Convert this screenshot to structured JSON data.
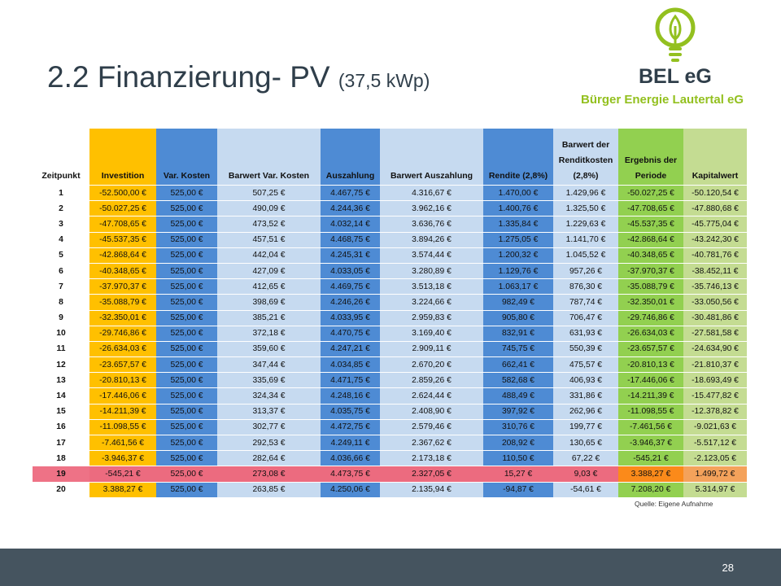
{
  "title": "2.2 Finanzierung- PV",
  "subtitle": "(37,5 kWp)",
  "logo": {
    "name": "BEL eG",
    "tagline": "Bürger Energie Lautertal eG",
    "icon": "lightbulb-icon",
    "color": "#93c01f"
  },
  "colors": {
    "investition": "#ffc000",
    "blue": "#4e8bd4",
    "light_blue": "#c6daf0",
    "ergebnis": "#92d050",
    "kapitalwert": "#c4dc92",
    "highlight_row": "#ec6b7f",
    "footer": "#45545f"
  },
  "table": {
    "headers": [
      "Zeitpunkt",
      "Investition",
      "Var. Kosten",
      "Barwert Var. Kosten",
      "Auszahlung",
      "Barwert Auszahlung",
      "Rendite (2,8%)",
      "Barwert der Renditkosten (2,8%)",
      "Ergebnis der Periode",
      "Kapitalwert"
    ],
    "highlight_row": "19",
    "rows": [
      [
        "1",
        "-52.500,00 €",
        "525,00 €",
        "507,25 €",
        "4.467,75 €",
        "4.316,67 €",
        "1.470,00 €",
        "1.429,96 €",
        "-50.027,25 €",
        "-50.120,54 €"
      ],
      [
        "2",
        "-50.027,25 €",
        "525,00 €",
        "490,09 €",
        "4.244,36 €",
        "3.962,16 €",
        "1.400,76 €",
        "1.325,50 €",
        "-47.708,65 €",
        "-47.880,68 €"
      ],
      [
        "3",
        "-47.708,65 €",
        "525,00 €",
        "473,52 €",
        "4.032,14 €",
        "3.636,76 €",
        "1.335,84 €",
        "1.229,63 €",
        "-45.537,35 €",
        "-45.775,04 €"
      ],
      [
        "4",
        "-45.537,35 €",
        "525,00 €",
        "457,51 €",
        "4.468,75 €",
        "3.894,26 €",
        "1.275,05 €",
        "1.141,70 €",
        "-42.868,64 €",
        "-43.242,30 €"
      ],
      [
        "5",
        "-42.868,64 €",
        "525,00 €",
        "442,04 €",
        "4.245,31 €",
        "3.574,44 €",
        "1.200,32 €",
        "1.045,52 €",
        "-40.348,65 €",
        "-40.781,76 €"
      ],
      [
        "6",
        "-40.348,65 €",
        "525,00 €",
        "427,09 €",
        "4.033,05 €",
        "3.280,89 €",
        "1.129,76 €",
        "957,26 €",
        "-37.970,37 €",
        "-38.452,11 €"
      ],
      [
        "7",
        "-37.970,37 €",
        "525,00 €",
        "412,65 €",
        "4.469,75 €",
        "3.513,18 €",
        "1.063,17 €",
        "876,30 €",
        "-35.088,79 €",
        "-35.746,13 €"
      ],
      [
        "8",
        "-35.088,79 €",
        "525,00 €",
        "398,69 €",
        "4.246,26 €",
        "3.224,66 €",
        "982,49 €",
        "787,74 €",
        "-32.350,01 €",
        "-33.050,56 €"
      ],
      [
        "9",
        "-32.350,01 €",
        "525,00 €",
        "385,21 €",
        "4.033,95 €",
        "2.959,83 €",
        "905,80 €",
        "706,47 €",
        "-29.746,86 €",
        "-30.481,86 €"
      ],
      [
        "10",
        "-29.746,86 €",
        "525,00 €",
        "372,18 €",
        "4.470,75 €",
        "3.169,40 €",
        "832,91 €",
        "631,93 €",
        "-26.634,03 €",
        "-27.581,58 €"
      ],
      [
        "11",
        "-26.634,03 €",
        "525,00 €",
        "359,60 €",
        "4.247,21 €",
        "2.909,11 €",
        "745,75 €",
        "550,39 €",
        "-23.657,57 €",
        "-24.634,90 €"
      ],
      [
        "12",
        "-23.657,57 €",
        "525,00 €",
        "347,44 €",
        "4.034,85 €",
        "2.670,20 €",
        "662,41 €",
        "475,57 €",
        "-20.810,13 €",
        "-21.810,37 €"
      ],
      [
        "13",
        "-20.810,13 €",
        "525,00 €",
        "335,69 €",
        "4.471,75 €",
        "2.859,26 €",
        "582,68 €",
        "406,93 €",
        "-17.446,06 €",
        "-18.693,49 €"
      ],
      [
        "14",
        "-17.446,06 €",
        "525,00 €",
        "324,34 €",
        "4.248,16 €",
        "2.624,44 €",
        "488,49 €",
        "331,86 €",
        "-14.211,39 €",
        "-15.477,82 €"
      ],
      [
        "15",
        "-14.211,39 €",
        "525,00 €",
        "313,37 €",
        "4.035,75 €",
        "2.408,90 €",
        "397,92 €",
        "262,96 €",
        "-11.098,55 €",
        "-12.378,82 €"
      ],
      [
        "16",
        "-11.098,55 €",
        "525,00 €",
        "302,77 €",
        "4.472,75 €",
        "2.579,46 €",
        "310,76 €",
        "199,77 €",
        "-7.461,56 €",
        "-9.021,63 €"
      ],
      [
        "17",
        "-7.461,56 €",
        "525,00 €",
        "292,53 €",
        "4.249,11 €",
        "2.367,62 €",
        "208,92 €",
        "130,65 €",
        "-3.946,37 €",
        "-5.517,12 €"
      ],
      [
        "18",
        "-3.946,37 €",
        "525,00 €",
        "282,64 €",
        "4.036,66 €",
        "2.173,18 €",
        "110,50 €",
        "67,22 €",
        "-545,21 €",
        "-2.123,05 €"
      ],
      [
        "19",
        "-545,21 €",
        "525,00 €",
        "273,08 €",
        "4.473,75 €",
        "2.327,05 €",
        "15,27 €",
        "9,03 €",
        "3.388,27 €",
        "1.499,72 €"
      ],
      [
        "20",
        "3.388,27 €",
        "525,00 €",
        "263,85 €",
        "4.250,06 €",
        "2.135,94 €",
        "-94,87 €",
        "-54,61 €",
        "7.208,20 €",
        "5.314,97 €"
      ]
    ]
  },
  "source": "Quelle: Eigene Aufnahme",
  "page_number": "28"
}
